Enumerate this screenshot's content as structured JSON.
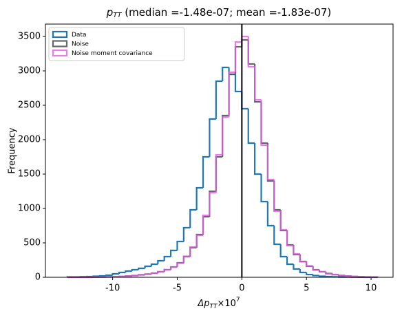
{
  "chart_data": {
    "type": "histogram",
    "title": {
      "symbol": "p",
      "subscript": "TT",
      "text": " (median =-1.48e-07; mean =-1.83e-07)"
    },
    "xlabel": {
      "symbol": "Δp",
      "subscript": "TT",
      "text": "×10",
      "superscript": "7"
    },
    "ylabel": "Frequency",
    "bins": [
      -13.5,
      -13,
      -12.5,
      -12,
      -11.5,
      -11,
      -10.5,
      -10,
      -9.5,
      -9,
      -8.5,
      -8,
      -7.5,
      -7,
      -6.5,
      -6,
      -5.5,
      -5,
      -4.5,
      -4,
      -3.5,
      -3,
      -2.5,
      -2,
      -1.5,
      -1,
      -0.5,
      0,
      0.5,
      1,
      1.5,
      2,
      2.5,
      3,
      3.5,
      4,
      4.5,
      5,
      5.5,
      6,
      6.5,
      7,
      7.5,
      8,
      8.5,
      9,
      9.5,
      10,
      10.5
    ],
    "series": [
      {
        "name": "Data",
        "color": "#1f77b4",
        "opacity": 1,
        "values": [
          5,
          5,
          8,
          10,
          15,
          20,
          30,
          50,
          70,
          90,
          110,
          130,
          160,
          190,
          240,
          300,
          390,
          520,
          720,
          980,
          1300,
          1750,
          2300,
          2850,
          3050,
          2950,
          2700,
          2450,
          1950,
          1500,
          1100,
          750,
          480,
          300,
          190,
          120,
          70,
          40,
          25,
          15,
          10,
          6,
          4,
          3,
          2,
          1,
          0,
          0
        ]
      },
      {
        "name": "Noise",
        "color": "#555555",
        "opacity": 0.9,
        "values": [
          0,
          0,
          0,
          0,
          2,
          3,
          5,
          8,
          12,
          18,
          25,
          35,
          45,
          60,
          80,
          110,
          150,
          210,
          300,
          430,
          620,
          880,
          1250,
          1750,
          2350,
          2950,
          3350,
          3450,
          3100,
          2550,
          1950,
          1400,
          980,
          680,
          470,
          330,
          230,
          160,
          110,
          80,
          55,
          38,
          26,
          18,
          12,
          8,
          5,
          3
        ]
      },
      {
        "name": "Noise moment covariance",
        "color": "#e05ce6",
        "opacity": 0.8,
        "values": [
          0,
          0,
          0,
          0,
          1,
          3,
          6,
          9,
          13,
          17,
          24,
          36,
          47,
          58,
          82,
          112,
          148,
          205,
          305,
          440,
          610,
          900,
          1230,
          1780,
          2330,
          2980,
          3420,
          3500,
          3060,
          2580,
          1920,
          1420,
          960,
          690,
          460,
          340,
          225,
          165,
          105,
          82,
          52,
          40,
          25,
          17,
          11,
          9,
          4,
          3
        ]
      }
    ],
    "vline": 0,
    "xlim": [
      -15.2,
      11.7
    ],
    "ylim": [
      0,
      3680
    ],
    "xticks": [
      -10,
      -5,
      0,
      5,
      10
    ],
    "yticks": [
      0,
      500,
      1000,
      1500,
      2000,
      2500,
      3000,
      3500
    ],
    "legend": "upper left"
  }
}
